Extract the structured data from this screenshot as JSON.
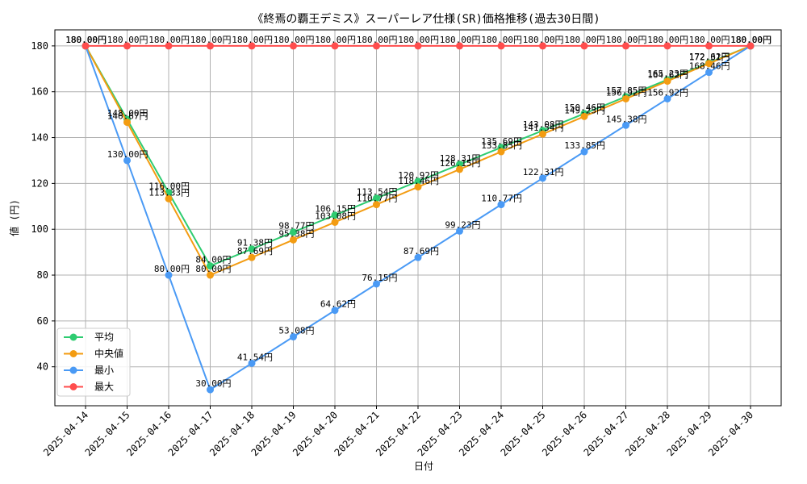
{
  "chart_data": {
    "type": "line",
    "title": "《終焉の覇王デミス》スーパーレア仕様(SR)価格推移(過去30日間)",
    "xlabel": "日付",
    "ylabel": "値 (円)",
    "unit_suffix": "円",
    "categories": [
      "2025-04-14",
      "2025-04-15",
      "2025-04-16",
      "2025-04-17",
      "2025-04-18",
      "2025-04-19",
      "2025-04-20",
      "2025-04-21",
      "2025-04-22",
      "2025-04-23",
      "2025-04-24",
      "2025-04-25",
      "2025-04-26",
      "2025-04-27",
      "2025-04-28",
      "2025-04-29",
      "2025-04-30"
    ],
    "ylim": [
      23,
      187
    ],
    "yticks": [
      40,
      60,
      80,
      100,
      120,
      140,
      160,
      180
    ],
    "grid": true,
    "legend_position": "lower-left",
    "series": [
      {
        "name": "平均",
        "color": "#2ecc71",
        "values": [
          180.0,
          148.0,
          116.0,
          84.0,
          91.38,
          98.77,
          106.15,
          113.54,
          120.92,
          128.31,
          135.69,
          143.08,
          150.46,
          157.85,
          165.23,
          172.62,
          180.0
        ]
      },
      {
        "name": "中央値",
        "color": "#f39c12",
        "values": [
          180.0,
          146.67,
          113.33,
          80.0,
          87.69,
          95.38,
          103.08,
          110.77,
          118.46,
          126.15,
          133.85,
          141.54,
          149.23,
          156.92,
          164.62,
          172.31,
          180.0
        ]
      },
      {
        "name": "最小",
        "color": "#4a9af5",
        "values": [
          180.0,
          130.0,
          80.0,
          30.0,
          41.54,
          53.08,
          64.62,
          76.15,
          87.69,
          99.23,
          110.77,
          122.31,
          133.85,
          145.38,
          156.92,
          168.46,
          180.0
        ]
      },
      {
        "name": "最大",
        "color": "#ff4d4d",
        "values": [
          180.0,
          180.0,
          180.0,
          180.0,
          180.0,
          180.0,
          180.0,
          180.0,
          180.0,
          180.0,
          180.0,
          180.0,
          180.0,
          180.0,
          180.0,
          180.0,
          180.0
        ]
      }
    ]
  }
}
